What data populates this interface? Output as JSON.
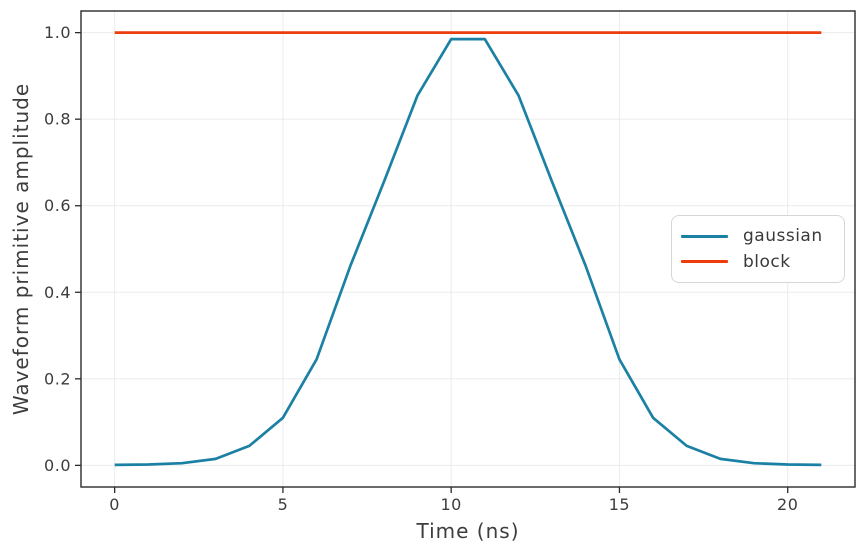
{
  "chart_data": {
    "type": "line",
    "title": "",
    "xlabel": "Time (ns)",
    "ylabel": "Waveform primitive amplitude",
    "x": [
      0,
      1,
      2,
      3,
      4,
      5,
      6,
      7,
      8,
      9,
      10,
      11,
      12,
      13,
      14,
      15,
      16,
      17,
      18,
      19,
      20,
      21
    ],
    "series": [
      {
        "name": "gaussian",
        "color": "#1b81a4",
        "values": [
          0.001,
          0.002,
          0.005,
          0.015,
          0.045,
          0.11,
          0.245,
          0.46,
          0.655,
          0.855,
          0.985,
          0.985,
          0.855,
          0.655,
          0.46,
          0.245,
          0.11,
          0.045,
          0.015,
          0.005,
          0.002,
          0.001
        ]
      },
      {
        "name": "block",
        "color": "#ed3c0e",
        "values": [
          1.0,
          1.0,
          1.0,
          1.0,
          1.0,
          1.0,
          1.0,
          1.0,
          1.0,
          1.0,
          1.0,
          1.0,
          1.0,
          1.0,
          1.0,
          1.0,
          1.0,
          1.0,
          1.0,
          1.0,
          1.0,
          1.0
        ]
      }
    ],
    "xlim": [
      -1.0,
      22.0
    ],
    "ylim": [
      -0.05,
      1.05
    ],
    "xticks": [
      0,
      5,
      10,
      15,
      20
    ],
    "xtick_labels": [
      "0",
      "5",
      "10",
      "15",
      "20"
    ],
    "yticks": [
      0.0,
      0.2,
      0.4,
      0.6,
      0.8,
      1.0
    ],
    "ytick_labels": [
      "0.0",
      "0.2",
      "0.4",
      "0.6",
      "0.8",
      "1.0"
    ],
    "grid": true,
    "legend_position": "center-right",
    "colors": {
      "background": "#ffffff",
      "grid": "#ebebeb",
      "spine": "#2b2b2b",
      "tick": "#2b2b2b",
      "tick_label": "#3d3d3d",
      "legend_border": "#d6d6d6"
    }
  }
}
